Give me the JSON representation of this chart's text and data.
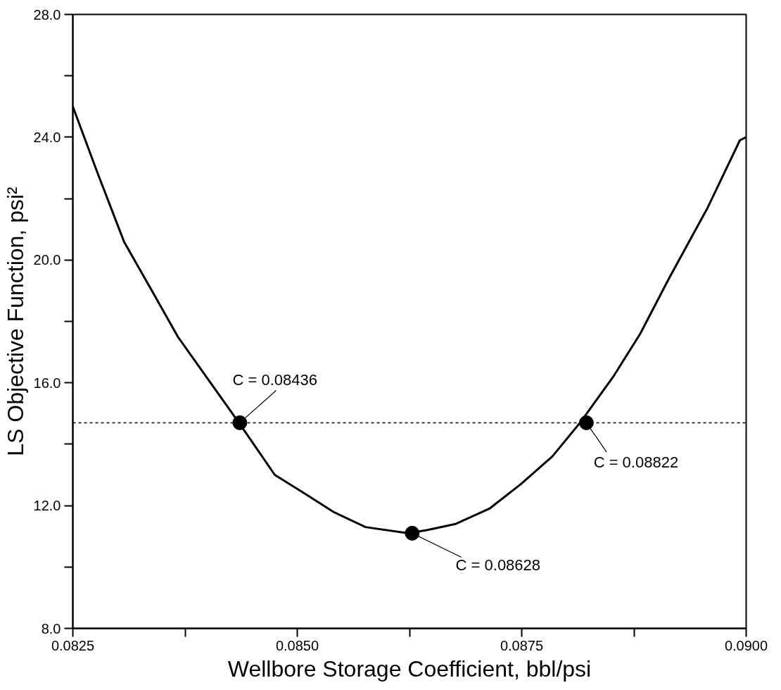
{
  "chart_data": {
    "type": "line",
    "xlabel": "Wellbore Storage Coefficient, bbl/psi",
    "ylabel": "LS Objective Function, psi²",
    "xlim": [
      0.0825,
      0.09
    ],
    "ylim": [
      8,
      28
    ],
    "xticks": [
      {
        "value": 0.0825,
        "label": "0.0825"
      },
      {
        "value": 0.08375,
        "label": null
      },
      {
        "value": 0.085,
        "label": "0.0850"
      },
      {
        "value": 0.08625,
        "label": null
      },
      {
        "value": 0.0875,
        "label": "0.0875"
      },
      {
        "value": 0.08875,
        "label": null
      },
      {
        "value": 0.09,
        "label": "0.0900"
      }
    ],
    "yticks": [
      {
        "value": 8,
        "label": "8.0"
      },
      {
        "value": 10,
        "label": null
      },
      {
        "value": 12,
        "label": "12.0"
      },
      {
        "value": 14,
        "label": null
      },
      {
        "value": 16,
        "label": "16.0"
      },
      {
        "value": 18,
        "label": null
      },
      {
        "value": 20,
        "label": "20.0"
      },
      {
        "value": 22,
        "label": null
      },
      {
        "value": 24,
        "label": "24.0"
      },
      {
        "value": 26,
        "label": null
      },
      {
        "value": 28,
        "label": "28.0"
      }
    ],
    "grid": false,
    "series": [
      {
        "color": "#000000",
        "marker": "none",
        "line_style": "solid",
        "x": [
          0.0825,
          0.08278,
          0.08307,
          0.0834,
          0.08367,
          0.08435,
          0.08475,
          0.08508,
          0.0854,
          0.08576,
          0.08623,
          0.08644,
          0.08676,
          0.08714,
          0.08749,
          0.08784,
          0.08815,
          0.08852,
          0.08882,
          0.08914,
          0.08957,
          0.08993,
          0.09
        ],
        "values": [
          25.0,
          22.8,
          20.6,
          18.9,
          17.5,
          14.7,
          13.0,
          12.4,
          11.8,
          11.3,
          11.1,
          11.2,
          11.4,
          11.9,
          12.7,
          13.6,
          14.7,
          16.2,
          17.6,
          19.4,
          21.7,
          23.9,
          24.0
        ]
      },
      {
        "type": "scatter",
        "color": "#000000",
        "marker": "circle",
        "x": [
          0.08436,
          0.08628,
          0.08822
        ],
        "values": [
          14.7,
          11.1,
          14.7
        ]
      }
    ],
    "ref_lines": [
      {
        "axis": "y",
        "value": 14.7,
        "color": "#000000",
        "line_style": "dashed"
      }
    ],
    "annotations": [
      {
        "text": "C = 0.08436",
        "x": 0.08436,
        "y": 14.7
      },
      {
        "text": "C = 0.08628",
        "x": 0.08628,
        "y": 11.1
      },
      {
        "text": "C = 0.08822",
        "x": 0.08822,
        "y": 14.7
      }
    ]
  }
}
